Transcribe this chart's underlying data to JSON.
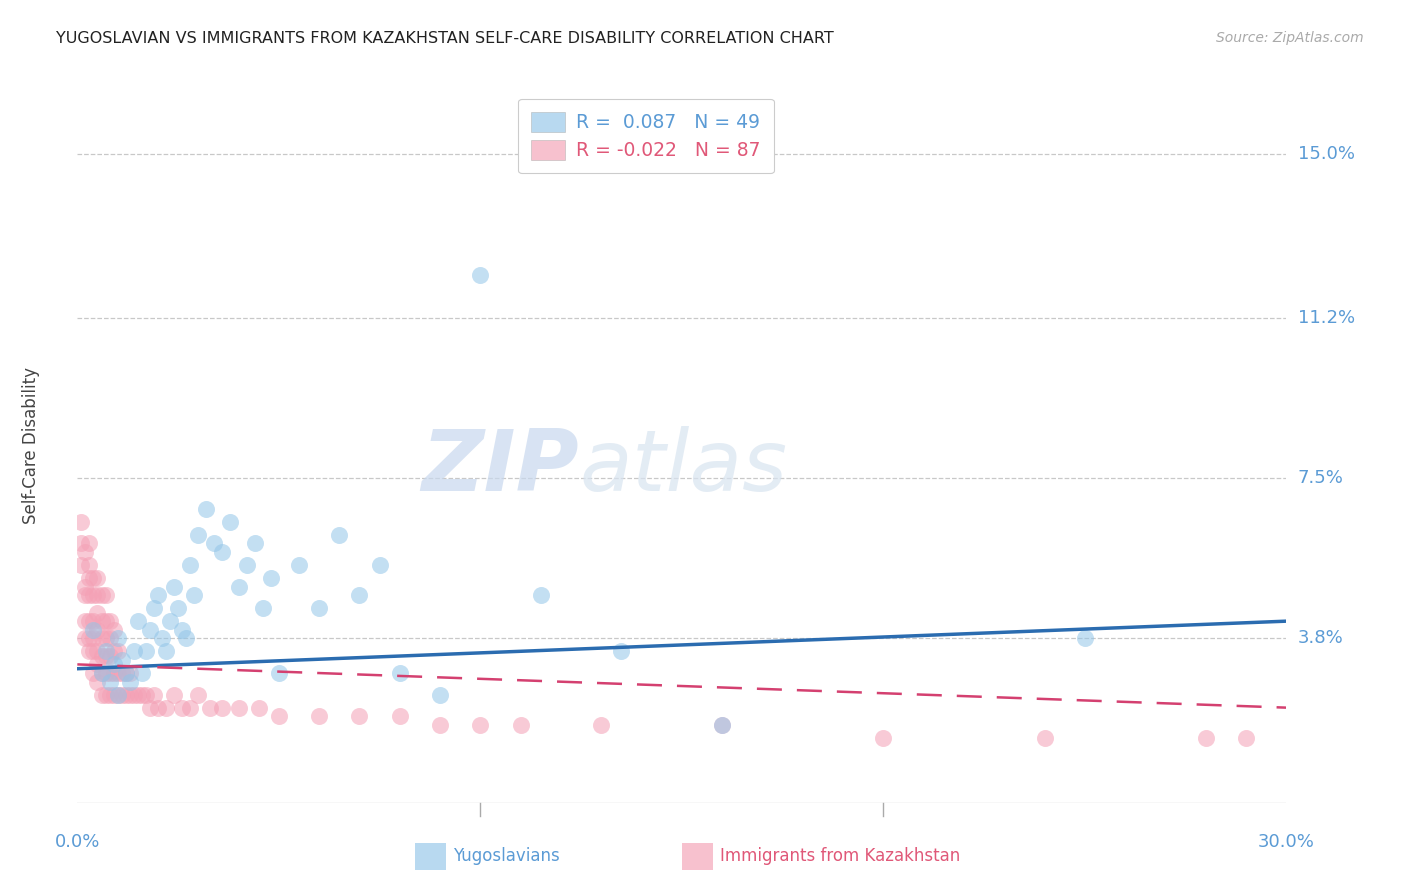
{
  "title": "YUGOSLAVIAN VS IMMIGRANTS FROM KAZAKHSTAN SELF-CARE DISABILITY CORRELATION CHART",
  "source": "Source: ZipAtlas.com",
  "ylabel": "Self-Care Disability",
  "ytick_labels": [
    "15.0%",
    "11.2%",
    "7.5%",
    "3.8%"
  ],
  "ytick_values": [
    0.15,
    0.112,
    0.075,
    0.038
  ],
  "xlim": [
    0.0,
    0.3
  ],
  "ylim": [
    0.0,
    0.165
  ],
  "legend_entry_blue": "R =  0.087   N = 49",
  "legend_entry_pink": "R = -0.022   N = 87",
  "legend_labels_bottom": [
    "Yugoslavians",
    "Immigrants from Kazakhstan"
  ],
  "blue_color": "#92c5e8",
  "pink_color": "#f4a0b5",
  "blue_fill": "#92c5e8",
  "pink_fill": "#f4a0b5",
  "trend_blue_color": "#2b6cb0",
  "trend_pink_color": "#d44070",
  "watermark_zip": "ZIP",
  "watermark_atlas": "atlas",
  "blue_trend_x": [
    0.0,
    0.3
  ],
  "blue_trend_y": [
    0.031,
    0.042
  ],
  "pink_trend_x": [
    0.0,
    0.3
  ],
  "pink_trend_y": [
    0.032,
    0.022
  ],
  "yug_x": [
    0.004,
    0.006,
    0.007,
    0.008,
    0.009,
    0.01,
    0.01,
    0.011,
    0.012,
    0.013,
    0.014,
    0.015,
    0.016,
    0.017,
    0.018,
    0.019,
    0.02,
    0.021,
    0.022,
    0.023,
    0.024,
    0.025,
    0.026,
    0.027,
    0.028,
    0.029,
    0.03,
    0.032,
    0.034,
    0.036,
    0.038,
    0.04,
    0.042,
    0.044,
    0.046,
    0.048,
    0.05,
    0.055,
    0.06,
    0.065,
    0.07,
    0.075,
    0.08,
    0.09,
    0.1,
    0.115,
    0.135,
    0.16,
    0.25
  ],
  "yug_y": [
    0.04,
    0.03,
    0.035,
    0.028,
    0.032,
    0.038,
    0.025,
    0.033,
    0.03,
    0.028,
    0.035,
    0.042,
    0.03,
    0.035,
    0.04,
    0.045,
    0.048,
    0.038,
    0.035,
    0.042,
    0.05,
    0.045,
    0.04,
    0.038,
    0.055,
    0.048,
    0.062,
    0.068,
    0.06,
    0.058,
    0.065,
    0.05,
    0.055,
    0.06,
    0.045,
    0.052,
    0.03,
    0.055,
    0.045,
    0.062,
    0.048,
    0.055,
    0.03,
    0.025,
    0.122,
    0.048,
    0.035,
    0.018,
    0.038
  ],
  "kaz_x": [
    0.001,
    0.001,
    0.001,
    0.002,
    0.002,
    0.002,
    0.002,
    0.002,
    0.003,
    0.003,
    0.003,
    0.003,
    0.003,
    0.003,
    0.003,
    0.004,
    0.004,
    0.004,
    0.004,
    0.004,
    0.004,
    0.005,
    0.005,
    0.005,
    0.005,
    0.005,
    0.005,
    0.005,
    0.006,
    0.006,
    0.006,
    0.006,
    0.006,
    0.006,
    0.007,
    0.007,
    0.007,
    0.007,
    0.007,
    0.007,
    0.008,
    0.008,
    0.008,
    0.008,
    0.008,
    0.009,
    0.009,
    0.009,
    0.009,
    0.01,
    0.01,
    0.01,
    0.011,
    0.011,
    0.012,
    0.012,
    0.013,
    0.013,
    0.014,
    0.015,
    0.016,
    0.017,
    0.018,
    0.019,
    0.02,
    0.022,
    0.024,
    0.026,
    0.028,
    0.03,
    0.033,
    0.036,
    0.04,
    0.045,
    0.05,
    0.06,
    0.07,
    0.08,
    0.09,
    0.1,
    0.11,
    0.13,
    0.16,
    0.2,
    0.24,
    0.28,
    0.29
  ],
  "kaz_y": [
    0.055,
    0.06,
    0.065,
    0.038,
    0.042,
    0.048,
    0.05,
    0.058,
    0.035,
    0.038,
    0.042,
    0.048,
    0.052,
    0.055,
    0.06,
    0.03,
    0.035,
    0.038,
    0.042,
    0.048,
    0.052,
    0.028,
    0.032,
    0.035,
    0.04,
    0.044,
    0.048,
    0.052,
    0.025,
    0.03,
    0.034,
    0.038,
    0.042,
    0.048,
    0.025,
    0.03,
    0.034,
    0.038,
    0.042,
    0.048,
    0.025,
    0.03,
    0.034,
    0.038,
    0.042,
    0.025,
    0.03,
    0.035,
    0.04,
    0.025,
    0.03,
    0.035,
    0.025,
    0.03,
    0.025,
    0.03,
    0.025,
    0.03,
    0.025,
    0.025,
    0.025,
    0.025,
    0.022,
    0.025,
    0.022,
    0.022,
    0.025,
    0.022,
    0.022,
    0.025,
    0.022,
    0.022,
    0.022,
    0.022,
    0.02,
    0.02,
    0.02,
    0.02,
    0.018,
    0.018,
    0.018,
    0.018,
    0.018,
    0.015,
    0.015,
    0.015,
    0.015
  ]
}
